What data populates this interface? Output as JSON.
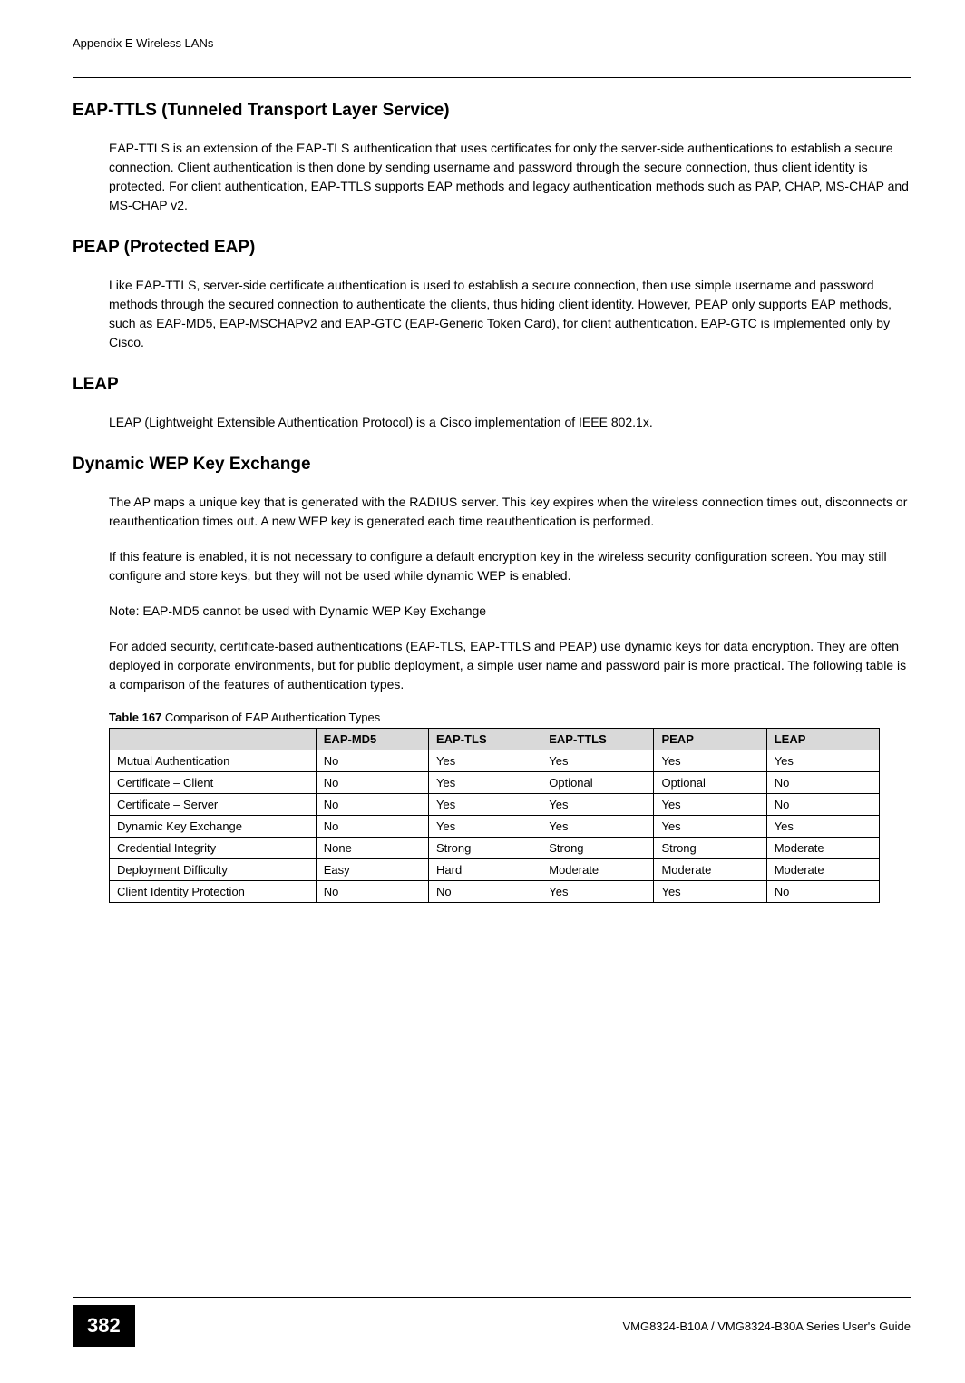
{
  "header": {
    "appendix_title": "Appendix E Wireless LANs"
  },
  "sections": {
    "eap_ttls": {
      "title": "EAP-TTLS (Tunneled Transport Layer Service)",
      "body": "EAP-TTLS is an extension of the EAP-TLS authentication that uses certificates for only the server-side authentications to establish a secure connection. Client authentication is then done by sending username and password through the secure connection, thus client identity is protected. For client authentication, EAP-TTLS supports EAP methods and legacy authentication methods such as PAP, CHAP, MS-CHAP and MS-CHAP v2."
    },
    "peap": {
      "title": "PEAP (Protected EAP)",
      "body": "Like EAP-TTLS, server-side certificate authentication is used to establish a secure connection, then use simple username and password methods through the secured connection to authenticate the clients, thus hiding client identity. However, PEAP only supports EAP methods, such as EAP-MD5, EAP-MSCHAPv2 and EAP-GTC (EAP-Generic Token Card), for client authentication. EAP-GTC is implemented only by Cisco."
    },
    "leap": {
      "title": "LEAP",
      "body": "LEAP (Lightweight Extensible Authentication Protocol) is a Cisco implementation of IEEE 802.1x."
    },
    "dynamic_wep": {
      "title": "Dynamic WEP Key Exchange",
      "body1": "The AP maps a unique key that is generated with the RADIUS server. This key expires when the wireless connection times out, disconnects or reauthentication times out. A new WEP key is generated each time reauthentication is performed.",
      "body2": "If this feature is enabled, it is not necessary to configure a default encryption key in the wireless security configuration screen. You may still configure and store keys, but they will not be used while dynamic WEP is enabled.",
      "note": "Note:  EAP-MD5 cannot be used with Dynamic WEP Key Exchange",
      "body3": "For added security, certificate-based authentications (EAP-TLS, EAP-TTLS and PEAP) use dynamic keys for data encryption. They are often deployed in corporate environments, but for public deployment, a simple user name and password pair is more practical. The following table is a comparison of the features of authentication types."
    }
  },
  "table": {
    "caption_label": "Table 167",
    "caption_text": "Comparison of EAP Authentication Types",
    "headers": [
      "",
      "EAP-MD5",
      "EAP-TLS",
      "EAP-TTLS",
      "PEAP",
      "LEAP"
    ],
    "rows": [
      [
        "Mutual Authentication",
        "No",
        "Yes",
        "Yes",
        "Yes",
        "Yes"
      ],
      [
        "Certificate – Client",
        "No",
        "Yes",
        "Optional",
        "Optional",
        "No"
      ],
      [
        "Certificate – Server",
        "No",
        "Yes",
        "Yes",
        "Yes",
        "No"
      ],
      [
        "Dynamic Key Exchange",
        "No",
        "Yes",
        "Yes",
        "Yes",
        "Yes"
      ],
      [
        "Credential Integrity",
        "None",
        "Strong",
        "Strong",
        "Strong",
        "Moderate"
      ],
      [
        "Deployment Difficulty",
        "Easy",
        "Hard",
        "Moderate",
        "Moderate",
        "Moderate"
      ],
      [
        "Client Identity Protection",
        "No",
        "No",
        "Yes",
        "Yes",
        "No"
      ]
    ]
  },
  "footer": {
    "page_number": "382",
    "guide_text": "VMG8324-B10A / VMG8324-B30A Series User's Guide"
  }
}
